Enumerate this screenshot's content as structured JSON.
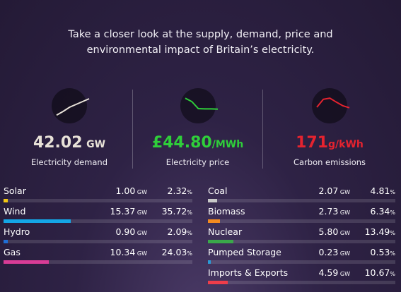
{
  "intro": {
    "line1": "Take a closer look at the supply, demand, price and",
    "line2": "environmental impact of Britain’s electricity."
  },
  "metrics": {
    "demand": {
      "value": "42.02",
      "unit": "GW",
      "label": "Electricity demand",
      "color": "#e8e2d8",
      "trend": [
        12,
        25,
        40,
        50,
        60,
        70
      ]
    },
    "price": {
      "value": "£44.80",
      "unit": "/MWh",
      "label": "Electricity price",
      "color": "#2fcf3a",
      "trend": [
        72,
        60,
        35,
        34,
        34,
        33
      ]
    },
    "carbon": {
      "value": "171",
      "unit": "g/kWh",
      "label": "Carbon emissions",
      "color": "#e5232f",
      "trend": [
        40,
        68,
        72,
        58,
        45,
        38
      ]
    }
  },
  "sources_left": [
    {
      "name": "Solar",
      "gw": "1.00",
      "gw_unit": "GW",
      "pct": "2.32",
      "pct_unit": "%",
      "share": 0.0232,
      "color": "#f1c613"
    },
    {
      "name": "Wind",
      "gw": "15.37",
      "gw_unit": "GW",
      "pct": "35.72",
      "pct_unit": "%",
      "share": 0.3572,
      "color": "#14a6e6"
    },
    {
      "name": "Hydro",
      "gw": "0.90",
      "gw_unit": "GW",
      "pct": "2.09",
      "pct_unit": "%",
      "share": 0.0209,
      "color": "#1f6fd6"
    },
    {
      "name": "Gas",
      "gw": "10.34",
      "gw_unit": "GW",
      "pct": "24.03",
      "pct_unit": "%",
      "share": 0.2403,
      "color": "#d83c96"
    }
  ],
  "sources_right": [
    {
      "name": "Coal",
      "gw": "2.07",
      "gw_unit": "GW",
      "pct": "4.81",
      "pct_unit": "%",
      "share": 0.0481,
      "color": "#c8c8c8"
    },
    {
      "name": "Biomass",
      "gw": "2.73",
      "gw_unit": "GW",
      "pct": "6.34",
      "pct_unit": "%",
      "share": 0.0634,
      "color": "#f28a1f"
    },
    {
      "name": "Nuclear",
      "gw": "5.80",
      "gw_unit": "GW",
      "pct": "13.49",
      "pct_unit": "%",
      "share": 0.1349,
      "color": "#3aa84a"
    },
    {
      "name": "Pumped Storage",
      "gw": "0.23",
      "gw_unit": "GW",
      "pct": "0.53",
      "pct_unit": "%",
      "share": 0.0053,
      "color": "#2a9ad6"
    },
    {
      "name": "Imports & Exports",
      "gw": "4.59",
      "gw_unit": "GW",
      "pct": "10.67",
      "pct_unit": "%",
      "share": 0.1067,
      "color": "#ef3d4a"
    }
  ]
}
